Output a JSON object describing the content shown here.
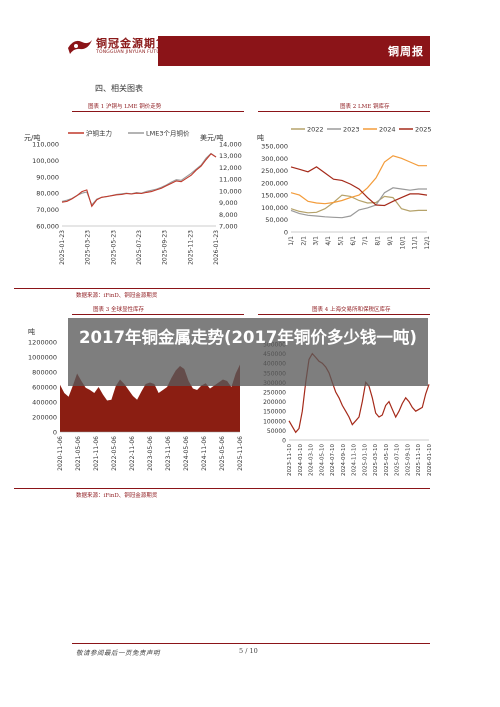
{
  "header": {
    "logo_name": "铜冠金源期货",
    "logo_en": "TONGGUAN JINYUAN FUTURES",
    "banner_title": "铜周报"
  },
  "section_title": "四、相关图表",
  "panels": {
    "fig1": {
      "caption": "图表 1  沪铜与 LME 铜价走势",
      "source": "数据来源：iFinD、铜冠金源期货"
    },
    "fig2": {
      "caption": "图表 2  LME 铜库存"
    },
    "fig3": {
      "caption": "图表 3  全球显性库存",
      "source": "数据来源：iFinD、铜冠金源期货"
    },
    "fig4": {
      "caption": "图表 4  上海交易所和保税区库存"
    }
  },
  "overlay": {
    "title": "2017年铜金属走势(2017年铜价多少钱一吨)"
  },
  "footer": {
    "disclaimer": "敬请参阅最后一页免责声明",
    "page": "5 / 10"
  },
  "colors": {
    "brand_red": "#8b1418",
    "series_red": "#c0392b",
    "series_gray": "#9a9a9a",
    "series_orange": "#f39c3b",
    "series_olive": "#b5a26a",
    "series_darkred": "#a52a1a",
    "area_fill": "#8b1e12"
  },
  "chart_data": [
    {
      "type": "line",
      "title": "",
      "y_left_unit": "元/吨",
      "y_right_unit": "美元/吨",
      "x_ticks": [
        "2025-01-23",
        "2025-03-23",
        "2025-05-23",
        "2025-07-23",
        "2025-09-23",
        "2025-11-23",
        "2026-01-23"
      ],
      "y_left_ticks": [
        "60,000",
        "70,000",
        "80,000",
        "90,000",
        "100,000",
        "110,000"
      ],
      "y_right_ticks": [
        "7,000",
        "8,000",
        "9,000",
        "10,000",
        "11,000",
        "12,000",
        "13,000",
        "14,000"
      ],
      "ylim_left": [
        60000,
        110000
      ],
      "ylim_right": [
        7000,
        14000
      ],
      "legend_position": "top",
      "series": [
        {
          "name": "沪铜主力",
          "axis": "left",
          "values": [
            74500,
            75000,
            76500,
            78500,
            81000,
            82000,
            72000,
            76000,
            77500,
            78000,
            78500,
            79000,
            79200,
            79800,
            79500,
            80000,
            79800,
            80500,
            81000,
            82000,
            83000,
            84500,
            86000,
            87500,
            87000,
            89000,
            91000,
            94000,
            96500,
            100500,
            104000,
            102000
          ]
        },
        {
          "name": "LME3个月铜价",
          "axis": "right",
          "values": [
            9100,
            9200,
            9350,
            9600,
            9800,
            9900,
            8800,
            9300,
            9450,
            9500,
            9600,
            9700,
            9750,
            9800,
            9750,
            9850,
            9800,
            9950,
            10050,
            10150,
            10300,
            10500,
            10750,
            10950,
            10900,
            11200,
            11500,
            11850,
            12200,
            12800,
            13200,
            12900
          ]
        }
      ]
    },
    {
      "type": "line",
      "title": "",
      "y_unit": "吨",
      "x_ticks": [
        "1/1",
        "2/1",
        "3/1",
        "4/1",
        "5/1",
        "6/1",
        "7/1",
        "8/1",
        "9/1",
        "10/1",
        "11/1",
        "12/1"
      ],
      "y_ticks": [
        "0",
        "50,000",
        "100,000",
        "150,000",
        "200,000",
        "250,000",
        "300,000",
        "350,000"
      ],
      "ylim": [
        0,
        350000
      ],
      "legend_position": "top",
      "series": [
        {
          "name": "2022",
          "values": [
            95000,
            84000,
            78000,
            80000,
            95000,
            120000,
            150000,
            145000,
            128000,
            118000,
            120000,
            145000,
            140000,
            95000,
            85000,
            88000,
            88000
          ]
        },
        {
          "name": "2023",
          "values": [
            88000,
            75000,
            68000,
            65000,
            62000,
            60000,
            58000,
            65000,
            90000,
            98000,
            110000,
            160000,
            180000,
            175000,
            170000,
            175000,
            175000
          ]
        },
        {
          "name": "2024",
          "values": [
            160000,
            150000,
            125000,
            118000,
            115000,
            120000,
            128000,
            140000,
            150000,
            180000,
            220000,
            285000,
            310000,
            300000,
            285000,
            270000,
            270000
          ]
        },
        {
          "name": "2025",
          "values": [
            265000,
            255000,
            245000,
            265000,
            240000,
            215000,
            210000,
            195000,
            175000,
            140000,
            110000,
            108000,
            125000,
            140000,
            155000,
            155000,
            150000
          ]
        }
      ]
    },
    {
      "type": "area",
      "title": "",
      "y_unit": "吨",
      "x_ticks": [
        "2020-11-06",
        "2021-05-06",
        "2021-11-06",
        "2022-05-06",
        "2022-11-06",
        "2023-05-06",
        "2023-11-06",
        "2024-05-06",
        "2024-11-06",
        "2025-05-06",
        "2025-11-06"
      ],
      "y_ticks": [
        "0",
        "200000",
        "400000",
        "600000",
        "800000",
        "1000000",
        "1200000"
      ],
      "ylim": [
        0,
        1200000
      ],
      "series": [
        {
          "name": "",
          "values": [
            630000,
            520000,
            470000,
            620000,
            780000,
            680000,
            590000,
            560000,
            520000,
            600000,
            500000,
            420000,
            430000,
            610000,
            700000,
            640000,
            560000,
            480000,
            430000,
            540000,
            640000,
            660000,
            640000,
            520000,
            560000,
            600000,
            720000,
            820000,
            880000,
            840000,
            680000,
            580000,
            560000,
            620000,
            650000,
            580000,
            620000,
            660000,
            700000,
            680000,
            600000,
            780000,
            900000
          ]
        }
      ]
    },
    {
      "type": "line",
      "title": "",
      "x_ticks": [
        "2023-11-10",
        "2024-01-10",
        "2024-03-10",
        "2024-05-10",
        "2024-07-10",
        "2024-09-10",
        "2024-11-10",
        "2025-01-10",
        "2025-03-10",
        "2025-05-10",
        "2025-07-10",
        "2025-09-10",
        "2025-11-10",
        "2026-01-10"
      ],
      "y_ticks": [
        "0",
        "50000",
        "100000",
        "150000",
        "200000",
        "250000",
        "300000",
        "350000",
        "400000",
        "450000",
        "500000"
      ],
      "ylim": [
        0,
        500000
      ],
      "series": [
        {
          "name": "",
          "values": [
            100000,
            70000,
            40000,
            60000,
            150000,
            300000,
            420000,
            450000,
            430000,
            410000,
            400000,
            380000,
            350000,
            300000,
            250000,
            220000,
            180000,
            150000,
            120000,
            80000,
            100000,
            120000,
            200000,
            300000,
            280000,
            220000,
            140000,
            120000,
            130000,
            180000,
            200000,
            160000,
            120000,
            150000,
            190000,
            220000,
            200000,
            170000,
            150000,
            160000,
            170000,
            240000,
            290000
          ]
        }
      ]
    }
  ]
}
